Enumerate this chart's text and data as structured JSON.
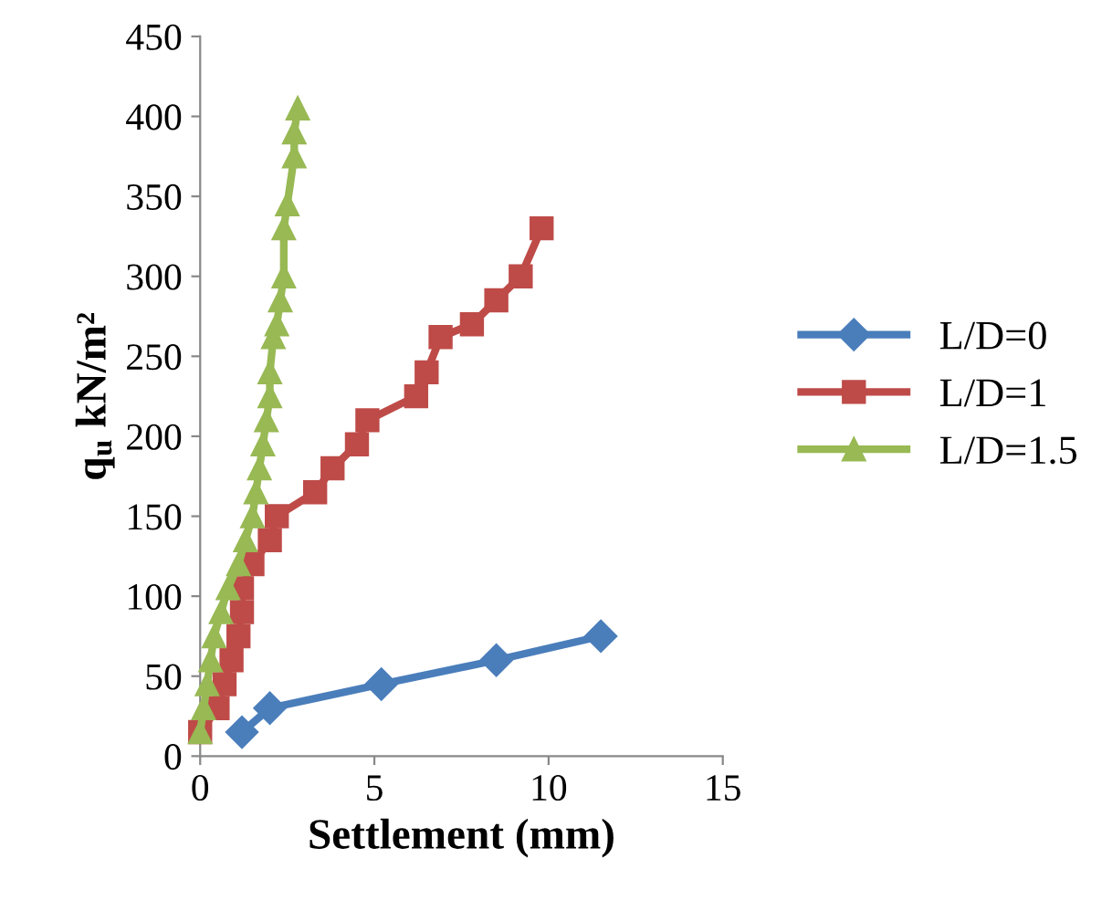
{
  "chart_data": {
    "type": "line",
    "xlabel": "Settlement (mm)",
    "ylabel": "q$_{u}$ kN/m²",
    "xlim": [
      0,
      15
    ],
    "xticks": [
      0,
      5,
      10,
      15
    ],
    "ylim": [
      0,
      450
    ],
    "yticks": [
      0,
      50,
      100,
      150,
      200,
      250,
      300,
      350,
      400,
      450
    ],
    "grid": false,
    "legend": "right",
    "series": [
      {
        "name": "L/D=0",
        "color": "#4a7ebb",
        "marker": "diamond",
        "x": [
          1.2,
          2,
          5.2,
          8.5,
          11.5
        ],
        "values": [
          15,
          30,
          45,
          60,
          75
        ]
      },
      {
        "name": "L/D=1",
        "color": "#be4b48",
        "marker": "square",
        "x": [
          0,
          0.5,
          0.7,
          0.9,
          1.1,
          1.2,
          1.2,
          1.5,
          2,
          2.2,
          3.3,
          3.8,
          4.5,
          4.8,
          6.2,
          6.5,
          6.9,
          7.8,
          8.5,
          9.2,
          9.8
        ],
        "values": [
          15,
          30,
          45,
          60,
          75,
          90,
          105,
          120,
          135,
          150,
          165,
          180,
          195,
          210,
          225,
          240,
          262,
          270,
          285,
          300,
          330
        ]
      },
      {
        "name": "L/D=1.5",
        "color": "#98b954",
        "marker": "triangle",
        "x": [
          0,
          0.1,
          0.2,
          0.3,
          0.4,
          0.6,
          0.8,
          1.1,
          1.3,
          1.5,
          1.6,
          1.7,
          1.8,
          1.9,
          2.0,
          2.0,
          2.1,
          2.2,
          2.3,
          2.4,
          2.4,
          2.5,
          2.7,
          2.7,
          2.8
        ],
        "values": [
          15,
          30,
          45,
          60,
          75,
          90,
          105,
          120,
          135,
          150,
          165,
          180,
          195,
          210,
          225,
          240,
          262,
          270,
          285,
          300,
          330,
          345,
          375,
          390,
          405
        ]
      }
    ]
  }
}
